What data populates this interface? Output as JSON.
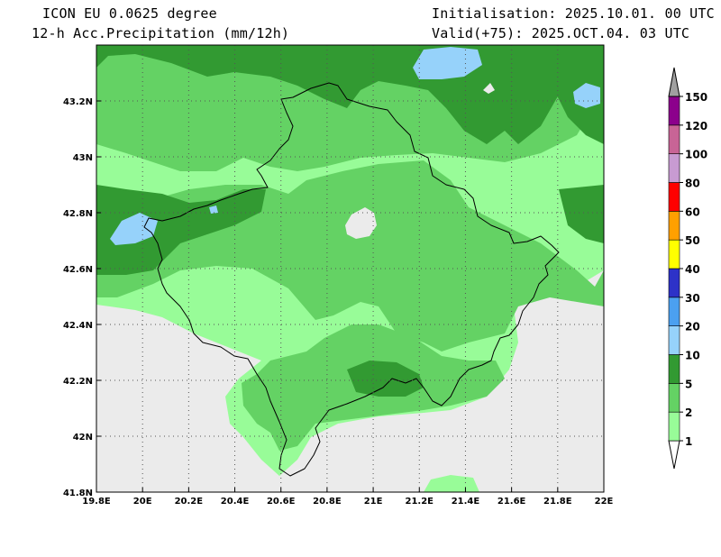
{
  "header": {
    "model": "ICON EU 0.0625 degree",
    "variable": "12-h Acc.Precipitation (mm/12h)",
    "init": "Initialisation: 2025.10.01. 00 UTC",
    "valid": "Valid(+75): 2025.OCT.04. 03 UTC"
  },
  "axes": {
    "lon_labels": [
      "19.8E",
      "20E",
      "20.2E",
      "20.4E",
      "20.6E",
      "20.8E",
      "21E",
      "21.2E",
      "21.4E",
      "21.6E",
      "21.8E",
      "22E"
    ],
    "lat_labels": [
      "41.8N",
      "42N",
      "42.2N",
      "42.4N",
      "42.6N",
      "42.8N",
      "43N",
      "43.2N"
    ],
    "lon_range": [
      19.8,
      22.0
    ],
    "lat_range": [
      41.8,
      43.4
    ]
  },
  "colorbar": {
    "levels": [
      "1",
      "2",
      "5",
      "10",
      "20",
      "30",
      "40",
      "50",
      "60",
      "80",
      "100",
      "120",
      "150"
    ],
    "colors": [
      "#98fc98",
      "#64d264",
      "#329a32",
      "#96d2fa",
      "#4ba0f0",
      "#2d32c8",
      "#ffff00",
      "#ffa000",
      "#ff0000",
      "#c89bd2",
      "#c86496",
      "#8c008c",
      "#a0a0a0"
    ],
    "below_color": "#ffffff"
  },
  "colors": {
    "no_precip": "#ebebeb",
    "border": "#000000",
    "grid": "#555555"
  }
}
